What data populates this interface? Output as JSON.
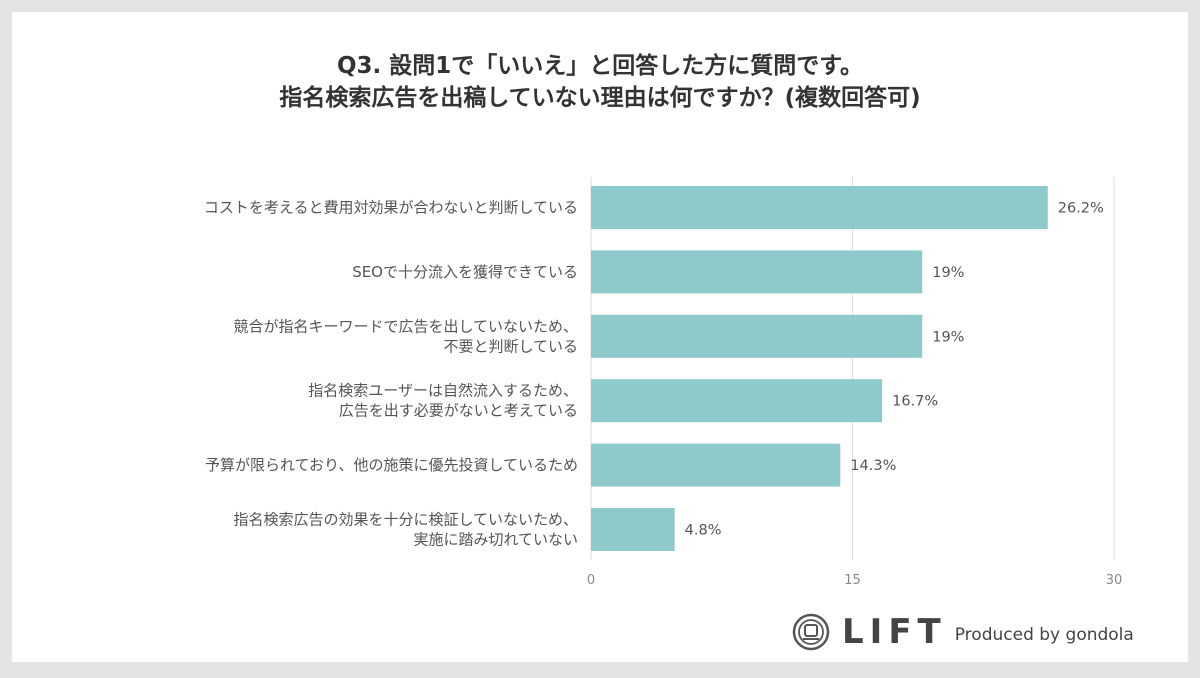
{
  "title": {
    "line1": "Q3. 設問1で「いいえ」と回答した方に質問です。",
    "line2": "指名検索広告を出稿していない理由は何ですか？(複数回答可)"
  },
  "chart_data": {
    "type": "bar",
    "orientation": "horizontal",
    "categories": [
      [
        "コストを考えると費用対効果が合わないと判断している"
      ],
      [
        "SEOで十分流入を獲得できている"
      ],
      [
        "競合が指名キーワードで広告を出していないため、",
        "不要と判断している"
      ],
      [
        "指名検索ユーザーは自然流入するため、",
        "広告を出す必要がないと考えている"
      ],
      [
        "予算が限られており、他の施策に優先投資しているため"
      ],
      [
        "指名検索広告の効果を十分に検証していないため、",
        "実施に踏み切れていない"
      ]
    ],
    "values": [
      26.2,
      19,
      19,
      16.7,
      14.3,
      4.8
    ],
    "value_labels": [
      "26.2%",
      "19%",
      "19%",
      "16.7%",
      "14.3%",
      "4.8%"
    ],
    "xlim": [
      0,
      30
    ],
    "xticks": [
      0,
      15,
      30
    ],
    "xtick_labels": [
      "0",
      "15",
      "30"
    ],
    "grid": true,
    "bar_color": "#8ecacb",
    "grid_color": "#dddddd"
  },
  "footer": {
    "logo_text": "LIFT",
    "produced_by": "Produced by gondola"
  }
}
